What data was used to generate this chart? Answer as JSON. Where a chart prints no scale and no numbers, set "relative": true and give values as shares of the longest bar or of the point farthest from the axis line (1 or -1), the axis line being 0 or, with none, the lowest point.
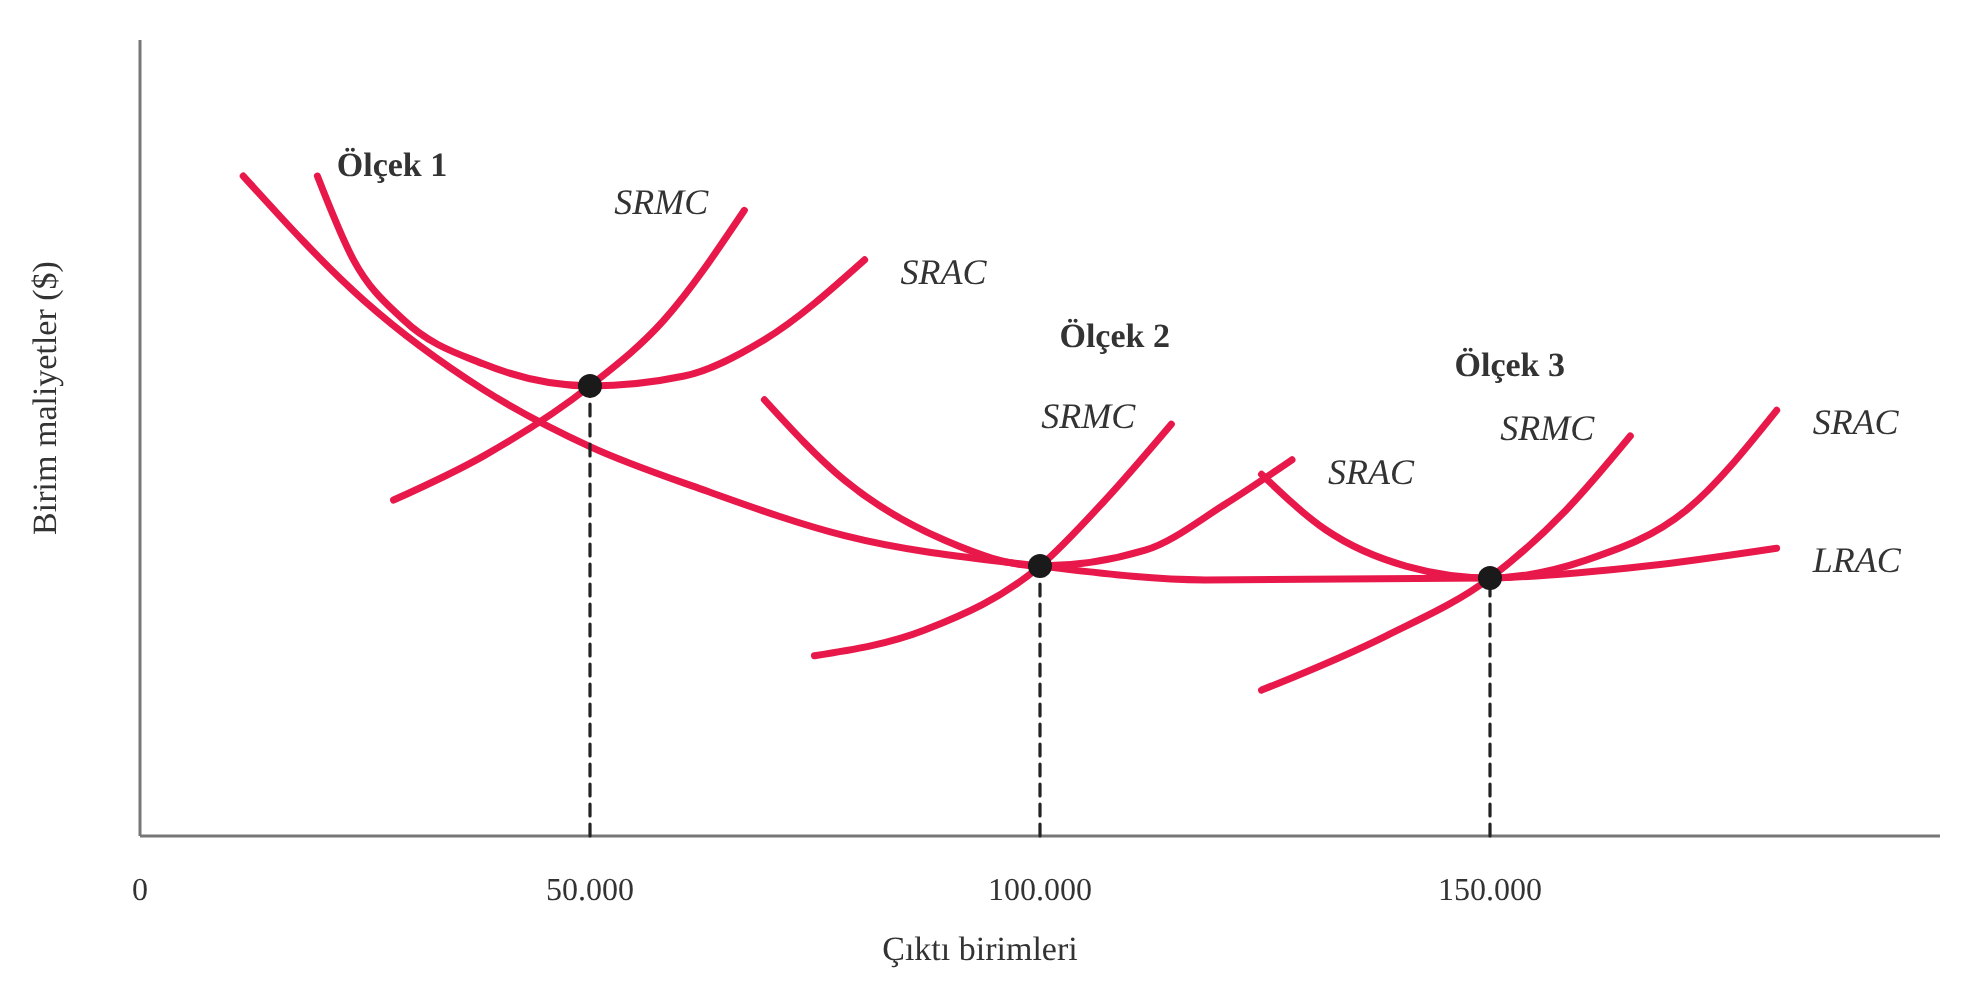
{
  "chart_data": {
    "type": "line",
    "relative": true,
    "xlabel": "Çıktı birimleri",
    "ylabel": "Birim maliyetler ($)",
    "xlim": [
      0,
      200000
    ],
    "xticks": [
      0,
      {
        "value": 50000,
        "label": "50.000"
      },
      {
        "value": 100000,
        "label": "100.000"
      },
      {
        "value": 150000,
        "label": "150.000"
      }
    ],
    "grid": false,
    "legend": false,
    "series": [
      {
        "name": "LRAC",
        "color": "#e8194a",
        "x": [
          11470,
          24830,
          38200,
          50000,
          62690,
          78290,
          100000,
          118370,
          150000,
          167370,
          181850
        ],
        "values": [
          1,
          0.812,
          0.676,
          0.59,
          0.524,
          0.455,
          0.409,
          0.388,
          0.391,
          0.409,
          0.436
        ]
      },
      {
        "name": "SRAC",
        "color": "#e8194a",
        "x": [
          19710,
          23720,
          29290,
          38200,
          50000,
          60470,
          69380,
          80510
        ],
        "values": [
          1,
          0.873,
          0.782,
          0.715,
          0.682,
          0.697,
          0.752,
          0.873
        ]
      },
      {
        "name": "SRMC",
        "color": "#e8194a",
        "x": [
          28170,
          38200,
          50000,
          58240,
          67150
        ],
        "values": [
          0.509,
          0.576,
          0.682,
          0.782,
          0.948
        ]
      },
      {
        "name": "SRAC",
        "color": "#e8194a",
        "x": [
          69380,
          78290,
          89420,
          100000,
          111690,
          120600,
          128000
        ],
        "values": [
          0.661,
          0.539,
          0.448,
          0.409,
          0.433,
          0.503,
          0.57
        ]
      },
      {
        "name": "SRMC",
        "color": "#e8194a",
        "x": [
          74940,
          87190,
          100000,
          107240,
          114590
        ],
        "values": [
          0.273,
          0.312,
          0.409,
          0.509,
          0.624
        ]
      },
      {
        "name": "SRAC",
        "color": "#e8194a",
        "x": [
          124610,
          131740,
          140650,
          150000,
          160690,
          171830,
          181850
        ],
        "values": [
          0.548,
          0.464,
          0.409,
          0.391,
          0.418,
          0.494,
          0.645
        ]
      },
      {
        "name": "SRMC",
        "color": "#e8194a",
        "x": [
          124610,
          138420,
          150000,
          158470,
          165590
        ],
        "values": [
          0.221,
          0.303,
          0.391,
          0.494,
          0.606
        ]
      },
      {
        "color": "#222222",
        "line_style": "dashed",
        "x": [
          50000,
          50000
        ],
        "values": [
          0,
          0.682
        ]
      },
      {
        "color": "#222222",
        "line_style": "dashed",
        "x": [
          100000,
          100000
        ],
        "values": [
          0,
          0.409
        ]
      },
      {
        "color": "#222222",
        "line_style": "dashed",
        "x": [
          150000,
          150000
        ],
        "values": [
          0,
          0.391
        ]
      },
      {
        "type": "scatter",
        "marker": "circle",
        "color": "#1a1a1a",
        "x": [
          50000,
          100000,
          150000
        ],
        "values": [
          0.682,
          0.409,
          0.391
        ]
      }
    ],
    "annotations": [
      "Ölçek 1",
      "Ölçek 2",
      "Ölçek 3"
    ]
  }
}
